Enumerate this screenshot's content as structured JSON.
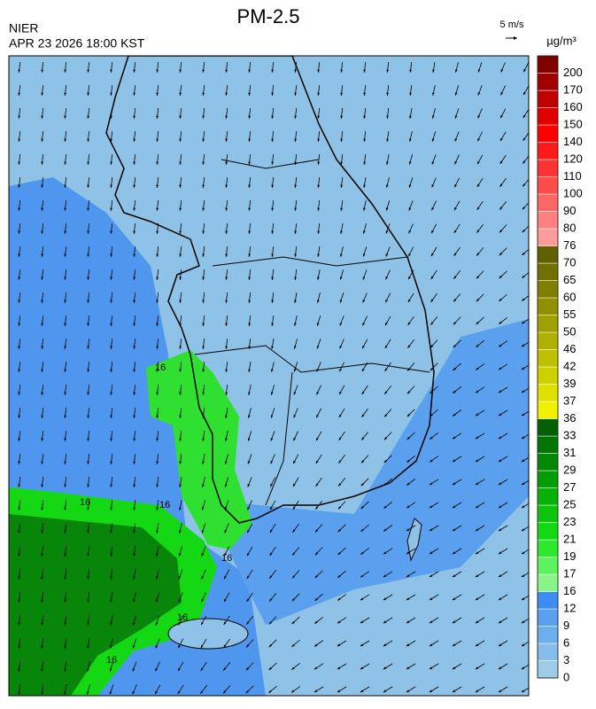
{
  "header": {
    "title": "PM-2.5",
    "agency": "NIER",
    "datetime": "APR 23 2026 18:00 KST"
  },
  "wind_reference": "5 m/s",
  "legend": {
    "unit": "µg/m³",
    "labels": [
      0,
      3,
      6,
      9,
      12,
      16,
      17,
      19,
      21,
      23,
      25,
      27,
      29,
      31,
      33,
      36,
      37,
      39,
      42,
      46,
      50,
      55,
      60,
      65,
      70,
      76,
      80,
      90,
      100,
      110,
      120,
      140,
      150,
      160,
      170,
      200
    ],
    "colors": [
      "#9dcbe8",
      "#86bde9",
      "#6daeed",
      "#5aa0ee",
      "#3d8ef0",
      "#87f587",
      "#5af55a",
      "#2ee82e",
      "#14d814",
      "#0cc40c",
      "#08b008",
      "#069c06",
      "#058805",
      "#047404",
      "#036003",
      "#f0f000",
      "#e0e000",
      "#d0d000",
      "#c0c000",
      "#b0b000",
      "#a0a000",
      "#909000",
      "#808000",
      "#707000",
      "#606000",
      "#ff9a9a",
      "#ff8080",
      "#ff6666",
      "#ff4c4c",
      "#ff3333",
      "#ff1a1a",
      "#ff0000",
      "#e00000",
      "#c00000",
      "#a00000",
      "#800000"
    ]
  },
  "contour_labels": [
    "16",
    "16",
    "16",
    "16",
    "16",
    "16"
  ]
}
